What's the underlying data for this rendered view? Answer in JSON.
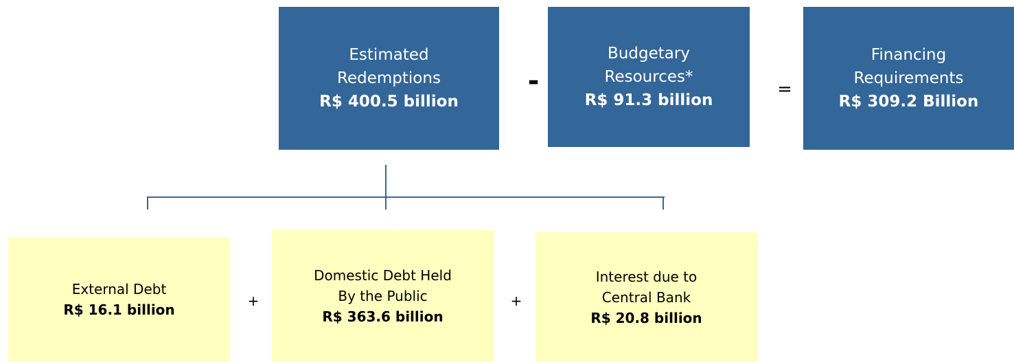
{
  "top_nodes": [
    {
      "lines": [
        "Estimated",
        "Redemptions"
      ],
      "value": "R$ 400.5  billion"
    },
    {
      "lines": [
        "Budgetary",
        "Resources*"
      ],
      "value": "R$ 91.3 billion"
    },
    {
      "lines": [
        "Financing",
        "Requirements"
      ],
      "value": "R$ 309.2 Billion"
    }
  ],
  "top_operators": [
    "-",
    "="
  ],
  "bottom_nodes": [
    {
      "lines": [
        "External Debt"
      ],
      "value": "R$ 16.1 billion"
    },
    {
      "lines": [
        "Domestic Debt Held",
        "By the Public"
      ],
      "value": "R$ 363.6 billion"
    },
    {
      "lines": [
        "Interest due to",
        "Central Bank"
      ],
      "value": "R$ 20.8 billion"
    }
  ],
  "bottom_operators": [
    "+",
    "+"
  ]
}
